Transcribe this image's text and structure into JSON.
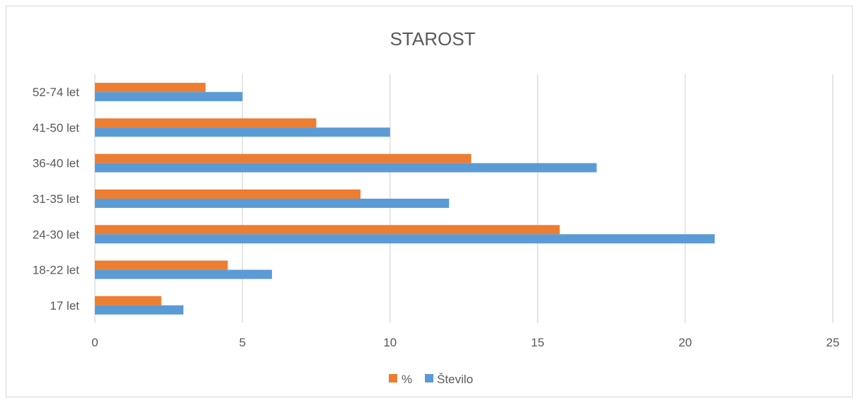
{
  "chart_data": {
    "type": "bar",
    "orientation": "horizontal",
    "title": "STAROST",
    "categories": [
      "17 let",
      "18-22 let",
      "24-30 let",
      "31-35 let",
      "36-40 let",
      "41-50 let",
      "52-74 let"
    ],
    "series": [
      {
        "name": "%",
        "color": "#ED7D31",
        "values": [
          2.25,
          4.5,
          15.75,
          9.0,
          12.75,
          7.5,
          3.75
        ]
      },
      {
        "name": "Število",
        "color": "#5B9BD5",
        "values": [
          3,
          6,
          21,
          12,
          17,
          10,
          5
        ]
      }
    ],
    "xlim": [
      0,
      25
    ],
    "xticks": [
      "0",
      "5",
      "10",
      "15",
      "20",
      "25"
    ],
    "xlabel": "",
    "ylabel": "",
    "grid": true,
    "legend_position": "bottom"
  }
}
